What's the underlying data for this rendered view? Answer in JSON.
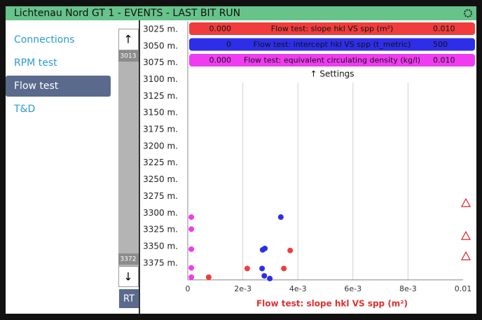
{
  "window": {
    "title": "Lichtenau Nord GT 1 - EVENTS - LAST BIT RUN"
  },
  "menu": {
    "items": [
      "Connections",
      "RPM test",
      "Flow test",
      "T&D"
    ],
    "selected": 2
  },
  "scrollbar": {
    "top_label": "3013",
    "bottom_label": "3372",
    "up": "↑",
    "down": "↓",
    "rt": "RT"
  },
  "chart_data": {
    "type": "scatter",
    "xlabel": "Flow test: slope hkl VS spp (m²)",
    "xlabel_color": "#e03030",
    "settings": "↑ Settings",
    "xlim": [
      0,
      0.01
    ],
    "xticks": [
      0,
      {
        "value": 0.002,
        "label": "2e-3"
      },
      {
        "value": 0.004,
        "label": "4e-3"
      },
      {
        "value": 0.006,
        "label": "6e-3"
      },
      {
        "value": 0.008,
        "label": "8e-3"
      },
      0.01
    ],
    "ylim": [
      3013,
      3400
    ],
    "y_inverted": true,
    "yticks": [
      {
        "value": 3025,
        "label": "3025 m."
      },
      {
        "value": 3050,
        "label": "3050 m."
      },
      {
        "value": 3075,
        "label": "3075 m."
      },
      {
        "value": 3100,
        "label": "3100 m."
      },
      {
        "value": 3125,
        "label": "3125 m."
      },
      {
        "value": 3150,
        "label": "3150 m."
      },
      {
        "value": 3175,
        "label": "3175 m."
      },
      {
        "value": 3200,
        "label": "3200 m."
      },
      {
        "value": 3225,
        "label": "3225 m."
      },
      {
        "value": 3250,
        "label": "3250 m."
      },
      {
        "value": 3275,
        "label": "3275 m."
      },
      {
        "value": 3300,
        "label": "3300 m."
      },
      {
        "value": 3325,
        "label": "3325 m."
      },
      {
        "value": 3350,
        "label": "3350 m."
      },
      {
        "value": 3375,
        "label": "3375 m."
      }
    ],
    "grid": true,
    "series": [
      {
        "name": "Flow test: slope hkl VS spp (m²)",
        "color": "#f03c3c",
        "xlim": [
          {
            "value": 0,
            "label": "0.000"
          },
          {
            "value": 0.01,
            "label": "0.010"
          }
        ],
        "x": [
          0.00076,
          0.00216,
          0.00349,
          0.00372
        ],
        "y": [
          3396,
          3383,
          3383,
          3356
        ]
      },
      {
        "name": "Flow test: intercept hkl VS spp (t_metric)",
        "color": "#2e2ee8",
        "xlim": [
          0,
          500
        ],
        "x": [
          169,
          136,
          140,
          135,
          139,
          149
        ],
        "y": [
          3306,
          3355,
          3353,
          3383,
          3394,
          3398
        ]
      },
      {
        "name": "Flow test: equivalent circulating density (kg/l)",
        "color": "#f03cf0",
        "xlim": [
          {
            "value": 0,
            "label": "0.000"
          },
          {
            "value": 0.01,
            "label": "0.010"
          }
        ],
        "x": [
          0.00013,
          0.00013,
          0.00013,
          0.00013,
          0.00013
        ],
        "y": [
          3306,
          3324,
          3354,
          3382,
          3396
        ]
      }
    ]
  }
}
